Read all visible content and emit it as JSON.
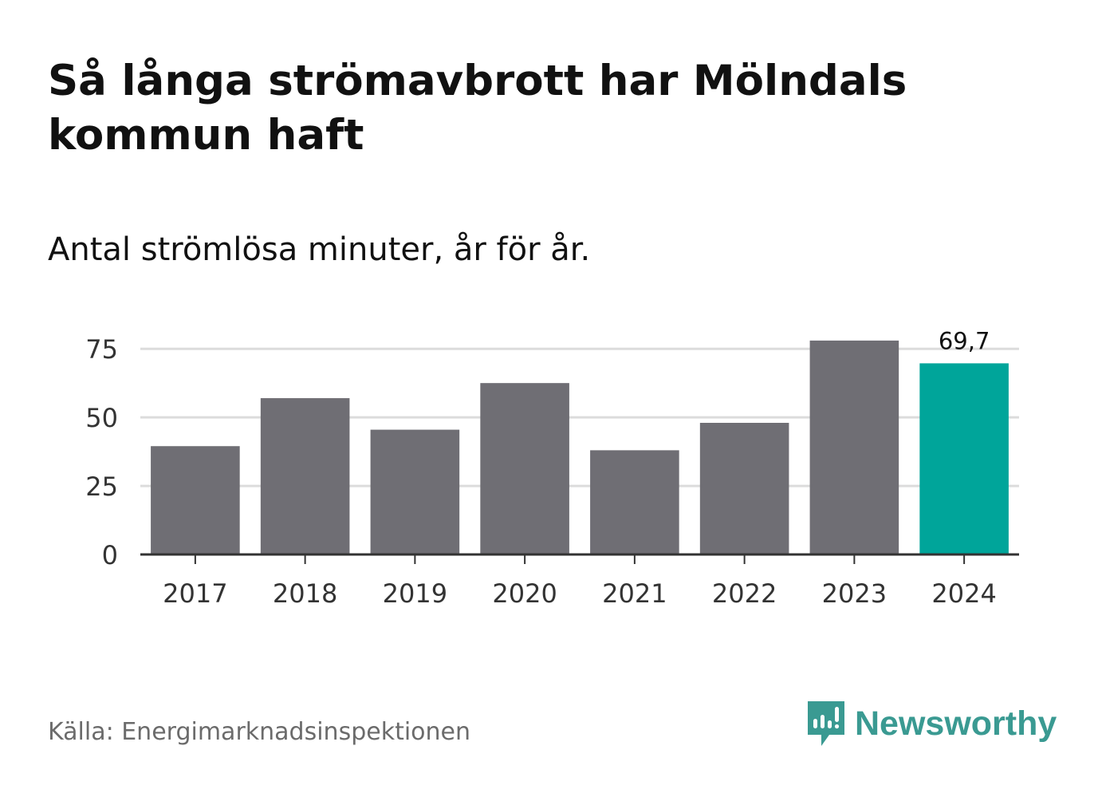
{
  "chart_data": {
    "type": "bar",
    "title": "Så långa strömavbrott har Mölndals kommun haft",
    "subtitle": "Antal strömlösa minuter, år för år.",
    "categories": [
      "2017",
      "2018",
      "2019",
      "2020",
      "2021",
      "2022",
      "2023",
      "2024"
    ],
    "values": [
      39.5,
      57,
      45.5,
      62.5,
      38,
      48,
      78,
      69.7
    ],
    "highlight_index": 7,
    "data_labels": {
      "2024": "69,7"
    },
    "ylim": [
      0,
      80
    ],
    "yticks": [
      0,
      25,
      50,
      75
    ],
    "xlabel": "",
    "ylabel": "",
    "grid": true,
    "colors": {
      "bar": "#6f6e74",
      "highlight": "#00a59a",
      "grid": "#dcdcdc",
      "axis": "#333333"
    }
  },
  "source": "Källa: Energimarknadsinspektionen",
  "brand": {
    "name": "Newsworthy",
    "icon": "newsworthy-logo-icon",
    "color": "#3a9a92"
  }
}
